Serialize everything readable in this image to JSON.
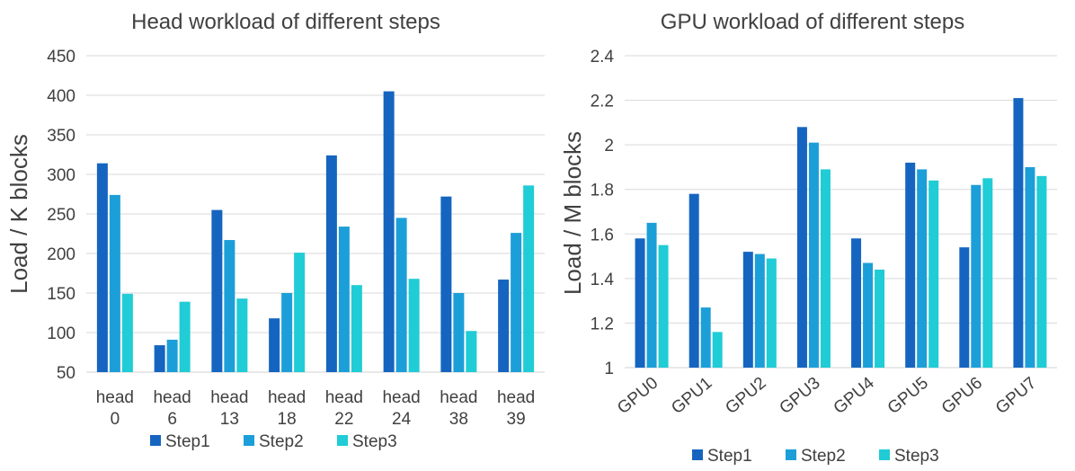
{
  "chart_data": [
    {
      "type": "bar",
      "title": "Head workload of different steps",
      "ylabel": "Load / K blocks",
      "xlabel": "",
      "ylim": [
        50,
        450
      ],
      "yticks": [
        "50",
        "100",
        "150",
        "200",
        "250",
        "300",
        "350",
        "400",
        "450"
      ],
      "categories": [
        [
          "head",
          "0"
        ],
        [
          "head",
          "6"
        ],
        [
          "head",
          "13"
        ],
        [
          "head",
          "18"
        ],
        [
          "head",
          "22"
        ],
        [
          "head",
          "24"
        ],
        [
          "head",
          "38"
        ],
        [
          "head",
          "39"
        ]
      ],
      "grid": "horizontal",
      "legend_position": "bottom",
      "series": [
        {
          "name": "Step1",
          "color": "#1565C0",
          "values": [
            314,
            84,
            255,
            118,
            324,
            405,
            272,
            167
          ]
        },
        {
          "name": "Step2",
          "color": "#1C9FD8",
          "values": [
            274,
            91,
            217,
            150,
            234,
            245,
            150,
            226
          ]
        },
        {
          "name": "Step3",
          "color": "#20CCD5",
          "values": [
            149,
            139,
            143,
            201,
            160,
            168,
            102,
            286
          ]
        }
      ]
    },
    {
      "type": "bar",
      "title": "GPU workload of different steps",
      "ylabel": "Load / M blocks",
      "xlabel": "",
      "ylim": [
        1,
        2.4
      ],
      "yticks": [
        "1",
        "1.2",
        "1.4",
        "1.6",
        "1.8",
        "2",
        "2.2",
        "2.4"
      ],
      "categories": [
        "GPU0",
        "GPU1",
        "GPU2",
        "GPU3",
        "GPU4",
        "GPU5",
        "GPU6",
        "GPU7"
      ],
      "grid": "horizontal",
      "legend_position": "bottom",
      "series": [
        {
          "name": "Step1",
          "color": "#1565C0",
          "values": [
            1.58,
            1.78,
            1.52,
            2.08,
            1.58,
            1.92,
            1.54,
            2.21
          ]
        },
        {
          "name": "Step2",
          "color": "#1C9FD8",
          "values": [
            1.65,
            1.27,
            1.51,
            2.01,
            1.47,
            1.89,
            1.82,
            1.9
          ]
        },
        {
          "name": "Step3",
          "color": "#20CCD5",
          "values": [
            1.55,
            1.16,
            1.49,
            1.89,
            1.44,
            1.84,
            1.85,
            1.86
          ]
        }
      ]
    }
  ]
}
